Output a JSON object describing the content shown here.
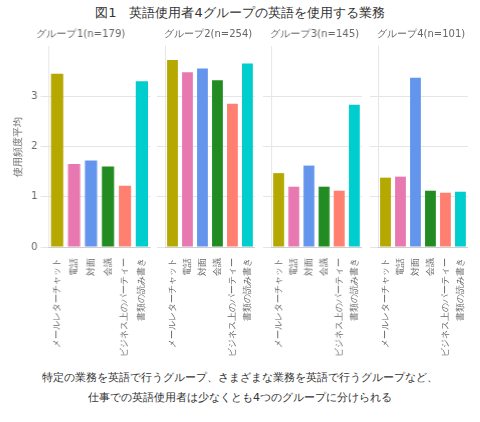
{
  "title": "図1　英語使用者4グループの英語を使用する業務",
  "subtitle": [
    "特定の業務を英語で行うグループ、さまざまな業務を英語で行うグループなど、",
    "仕事での英語使用者は少なくとも4つのグループに分けられる"
  ],
  "chart_data": [
    {
      "type": "bar",
      "title": "グループ1(n=179)",
      "ylabel": "使用頻度平均",
      "categories": [
        "メールレターチャット",
        "電話",
        "対面",
        "会議",
        "ビジネス上のパーティー",
        "書類の読み書き"
      ],
      "values": [
        3.45,
        1.65,
        1.72,
        1.6,
        1.22,
        3.3
      ],
      "colors": [
        "#b5a800",
        "#e879b0",
        "#6495ed",
        "#228b22",
        "#ff8070",
        "#00cdcd"
      ],
      "ylim": [
        0,
        4.0
      ],
      "yticks": [
        0,
        1,
        2,
        3
      ],
      "grid": true
    },
    {
      "type": "bar",
      "title": "グループ2(n=254)",
      "categories": [
        "メールレターチャット",
        "電話",
        "対面",
        "会議",
        "ビジネス上のパーティー",
        "書類の読み書き"
      ],
      "values": [
        3.72,
        3.48,
        3.55,
        3.32,
        2.85,
        3.65
      ],
      "colors": [
        "#b5a800",
        "#e879b0",
        "#6495ed",
        "#228b22",
        "#ff8070",
        "#00cdcd"
      ],
      "ylim": [
        0,
        4.0
      ],
      "yticks": [
        0,
        1,
        2,
        3
      ],
      "grid": true,
      "tick_labels": "x"
    },
    {
      "type": "bar",
      "title": "グループ3(n=145)",
      "categories": [
        "メールレターチャット",
        "電話",
        "対面",
        "会議",
        "ビジネス上のパーティー",
        "書類の読み書き"
      ],
      "values": [
        1.47,
        1.2,
        1.62,
        1.2,
        1.12,
        2.83
      ],
      "colors": [
        "#b5a800",
        "#e879b0",
        "#6495ed",
        "#228b22",
        "#ff8070",
        "#00cdcd"
      ],
      "ylim": [
        0,
        4.0
      ],
      "yticks": [
        0,
        1,
        2,
        3
      ],
      "grid": true,
      "tick_labels": "x"
    },
    {
      "type": "bar",
      "title": "グループ4(n=101)",
      "categories": [
        "メールレターチャット",
        "電話",
        "対面",
        "会議",
        "ビジネス上のパーティー",
        "書類の読み書き"
      ],
      "values": [
        1.38,
        1.4,
        3.37,
        1.12,
        1.08,
        1.1
      ],
      "colors": [
        "#b5a800",
        "#e879b0",
        "#6495ed",
        "#228b22",
        "#ff8070",
        "#00cdcd"
      ],
      "ylim": [
        0,
        4.0
      ],
      "yticks": [
        0,
        1,
        2,
        3
      ],
      "grid": true,
      "tick_labels": "x"
    }
  ]
}
